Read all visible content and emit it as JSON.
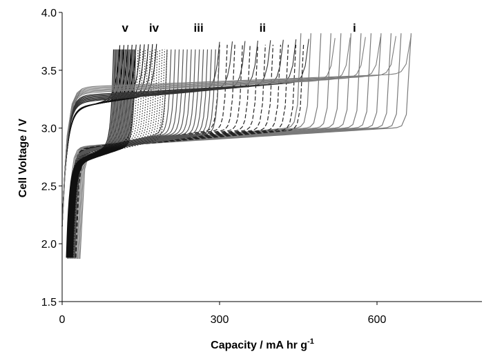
{
  "chart_data": {
    "type": "line",
    "xlabel": "Capacity / mA hr g",
    "xlabel_sup": "-1",
    "ylabel": "Cell Voltage / V",
    "xlim": [
      0,
      800
    ],
    "ylim": [
      1.5,
      4.0
    ],
    "x_ticks": [
      0,
      300,
      600
    ],
    "x_tick_labels": [
      "0",
      "300",
      "600"
    ],
    "y_ticks": [
      1.5,
      2.0,
      2.5,
      3.0,
      3.5,
      4.0
    ],
    "y_tick_labels": [
      "1.5",
      "2.0",
      "2.5",
      "3.0",
      "3.5",
      "4.0"
    ],
    "grid": false,
    "legend": "none",
    "region_labels": [
      {
        "text": "v",
        "x": 120
      },
      {
        "text": "iv",
        "x": 175
      },
      {
        "text": "iii",
        "x": 260
      },
      {
        "text": "ii",
        "x": 382
      },
      {
        "text": "i",
        "x": 557
      }
    ],
    "curve_groups": [
      {
        "label": "i",
        "style": "solid",
        "color": "#7a7a7a",
        "count": 12,
        "discharge_capacity_range": [
          455,
          665
        ],
        "charge_start_capacity_range": [
          10,
          34
        ],
        "charge_start_voltage": 1.87,
        "peak_voltage": 3.82,
        "charge_plateau_voltage": 2.95
      },
      {
        "label": "ii",
        "style": "dashed",
        "color": "#222222",
        "count": 12,
        "discharge_capacity_range": [
          300,
          460
        ],
        "charge_start_capacity_range": [
          14,
          26
        ],
        "charge_start_voltage": 1.88,
        "peak_voltage": 3.72,
        "charge_plateau_voltage": 2.93
      },
      {
        "label": "iii",
        "style": "solid",
        "color": "#555555",
        "count": 14,
        "discharge_capacity_range": [
          200,
          300
        ],
        "charge_start_capacity_range": [
          12,
          24
        ],
        "charge_start_voltage": 1.88,
        "peak_voltage": 3.68,
        "charge_plateau_voltage": 2.9
      },
      {
        "label": "iv",
        "style": "dotted",
        "color": "#333333",
        "count": 14,
        "discharge_capacity_range": [
          140,
          200
        ],
        "charge_start_capacity_range": [
          10,
          22
        ],
        "charge_start_voltage": 1.88,
        "peak_voltage": 3.68,
        "charge_plateau_voltage": 2.85
      },
      {
        "label": "v",
        "style": "solid",
        "color": "#111111",
        "count": 18,
        "discharge_capacity_range": [
          98,
          140
        ],
        "charge_start_capacity_range": [
          8,
          20
        ],
        "charge_start_voltage": 1.88,
        "peak_voltage": 3.68,
        "charge_plateau_voltage": 2.8
      }
    ],
    "discharge_curve": {
      "start_voltage": 2.15,
      "plateau_voltage_range": [
        3.15,
        3.4
      ],
      "end_capacity": 665,
      "end_voltage": 3.8
    }
  }
}
